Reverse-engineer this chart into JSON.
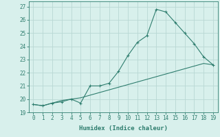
{
  "xlabel": "Humidex (Indice chaleur)",
  "x": [
    0,
    1,
    2,
    3,
    4,
    5,
    6,
    7,
    8,
    9,
    10,
    11,
    12,
    13,
    14,
    15,
    16,
    17,
    18,
    19
  ],
  "line1_y": [
    19.6,
    19.5,
    19.7,
    19.8,
    20.0,
    19.7,
    21.0,
    21.0,
    21.2,
    22.1,
    23.3,
    24.3,
    24.8,
    26.8,
    26.6,
    25.8,
    25.0,
    24.2,
    23.2,
    22.6
  ],
  "line2_y": [
    19.6,
    19.5,
    19.7,
    19.9,
    20.0,
    20.1,
    20.3,
    20.5,
    20.7,
    20.9,
    21.1,
    21.3,
    21.5,
    21.7,
    21.9,
    22.1,
    22.3,
    22.5,
    22.7,
    22.6
  ],
  "line_color": "#2e7d6e",
  "bg_color": "#d8f0ec",
  "grid_color": "#b8d8d4",
  "ylim_min": 19,
  "ylim_max": 27.4,
  "yticks": [
    19,
    20,
    21,
    22,
    23,
    24,
    25,
    26,
    27
  ],
  "xticks": [
    0,
    1,
    2,
    3,
    4,
    5,
    6,
    7,
    8,
    9,
    10,
    11,
    12,
    13,
    14,
    15,
    16,
    17,
    18,
    19
  ]
}
